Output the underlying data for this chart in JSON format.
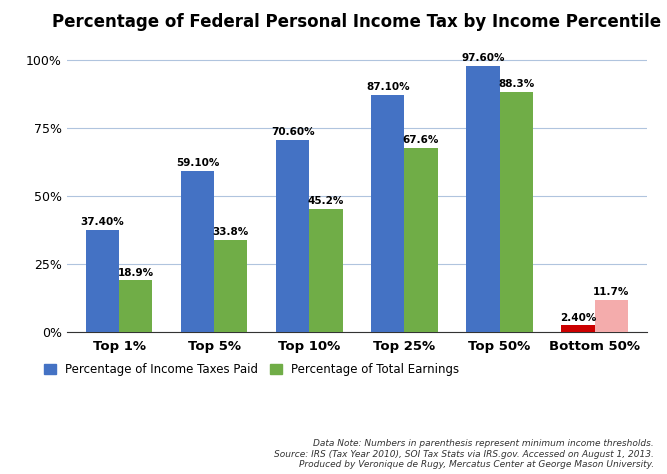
{
  "title": "Percentage of Federal Personal Income Tax by Income Percentile",
  "categories": [
    "Top 1%",
    "Top 5%",
    "Top 10%",
    "Top 25%",
    "Top 50%",
    "Bottom 50%"
  ],
  "income_taxes_paid": [
    37.4,
    59.1,
    70.6,
    87.1,
    97.6,
    2.4
  ],
  "total_earnings": [
    18.9,
    33.8,
    45.2,
    67.6,
    88.3,
    11.7
  ],
  "income_taxes_labels": [
    "37.40%",
    "59.10%",
    "70.60%",
    "87.10%",
    "97.60%",
    "2.40%"
  ],
  "total_earnings_labels": [
    "18.9%",
    "33.8%",
    "45.2%",
    "67.6%",
    "88.3%",
    "11.7%"
  ],
  "color_blue": "#4472C4",
  "color_green": "#70AD47",
  "color_red": "#CC0000",
  "color_pink": "#F4ACAC",
  "ylim": [
    0,
    108
  ],
  "yticks": [
    0,
    25,
    50,
    75,
    100
  ],
  "ytick_labels": [
    "0%",
    "25%",
    "50%",
    "75%",
    "100%"
  ],
  "legend_label_blue": "Percentage of Income Taxes Paid",
  "legend_label_green": "Percentage of Total Earnings",
  "footnote": "Data Note: Numbers in parenthesis represent minimum income thresholds.\nSource: IRS (Tax Year 2010), SOI Tax Stats via IRS.gov. Accessed on August 1, 2013.\nProduced by Veronique de Rugy, Mercatus Center at George Mason University.",
  "bar_width": 0.35,
  "background_color": "#FFFFFF",
  "grid_color": "#B0C4DE"
}
